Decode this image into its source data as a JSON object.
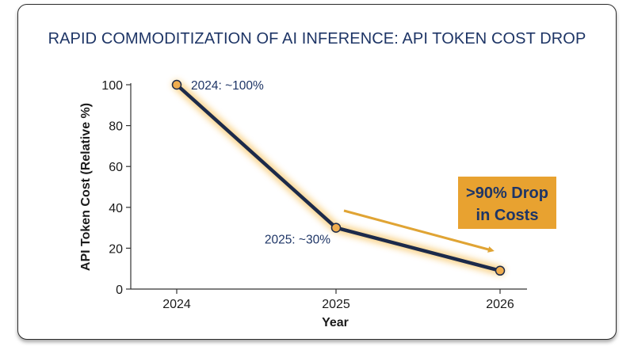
{
  "chart_data": {
    "type": "line",
    "title": "RAPID COMMODITIZATION OF AI INFERENCE: API TOKEN COST DROP",
    "xlabel": "Year",
    "ylabel": "API Token Cost (Relative %)",
    "x": [
      "2024",
      "2025",
      "2026"
    ],
    "series": [
      {
        "values": [
          100,
          30,
          9
        ]
      }
    ],
    "ylim": [
      0,
      100
    ],
    "yticks": [
      0,
      20,
      40,
      60,
      80,
      100
    ],
    "point_labels": [
      "2024: ~100%",
      "2025: ~30%",
      ""
    ],
    "callout": {
      "line1": ">90% Drop",
      "line2": "in Costs"
    },
    "grid": false,
    "legend": "none",
    "colors": {
      "line": "#1c2a4a",
      "glow": "#f5b335",
      "marker": "#f0ad4e",
      "callout_bg": "#e8a230",
      "arrow": "#e0a434",
      "title": "#1e3566"
    }
  }
}
